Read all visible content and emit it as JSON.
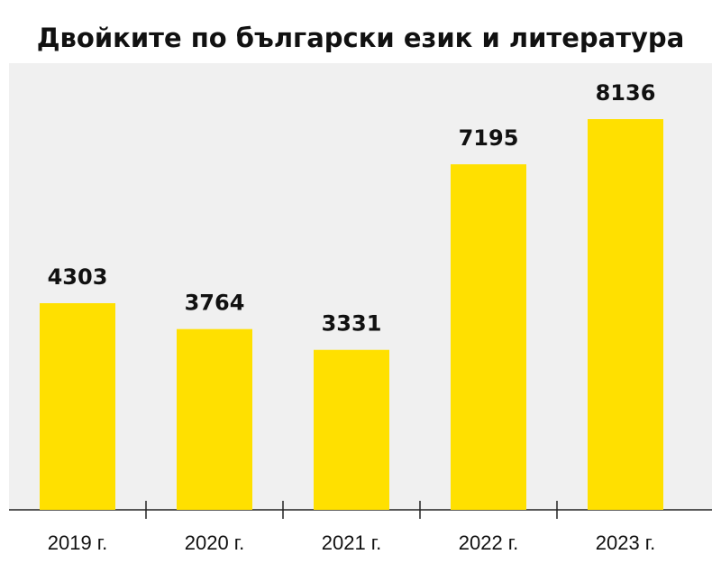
{
  "chart_data": {
    "type": "bar",
    "title": "Двойките по български език и литература",
    "categories": [
      "2019 г.",
      "2020 г.",
      "2021 г.",
      "2022 г.",
      "2023 г."
    ],
    "values": [
      4303,
      3764,
      3331,
      7195,
      8136
    ],
    "color": "#ffe000"
  }
}
